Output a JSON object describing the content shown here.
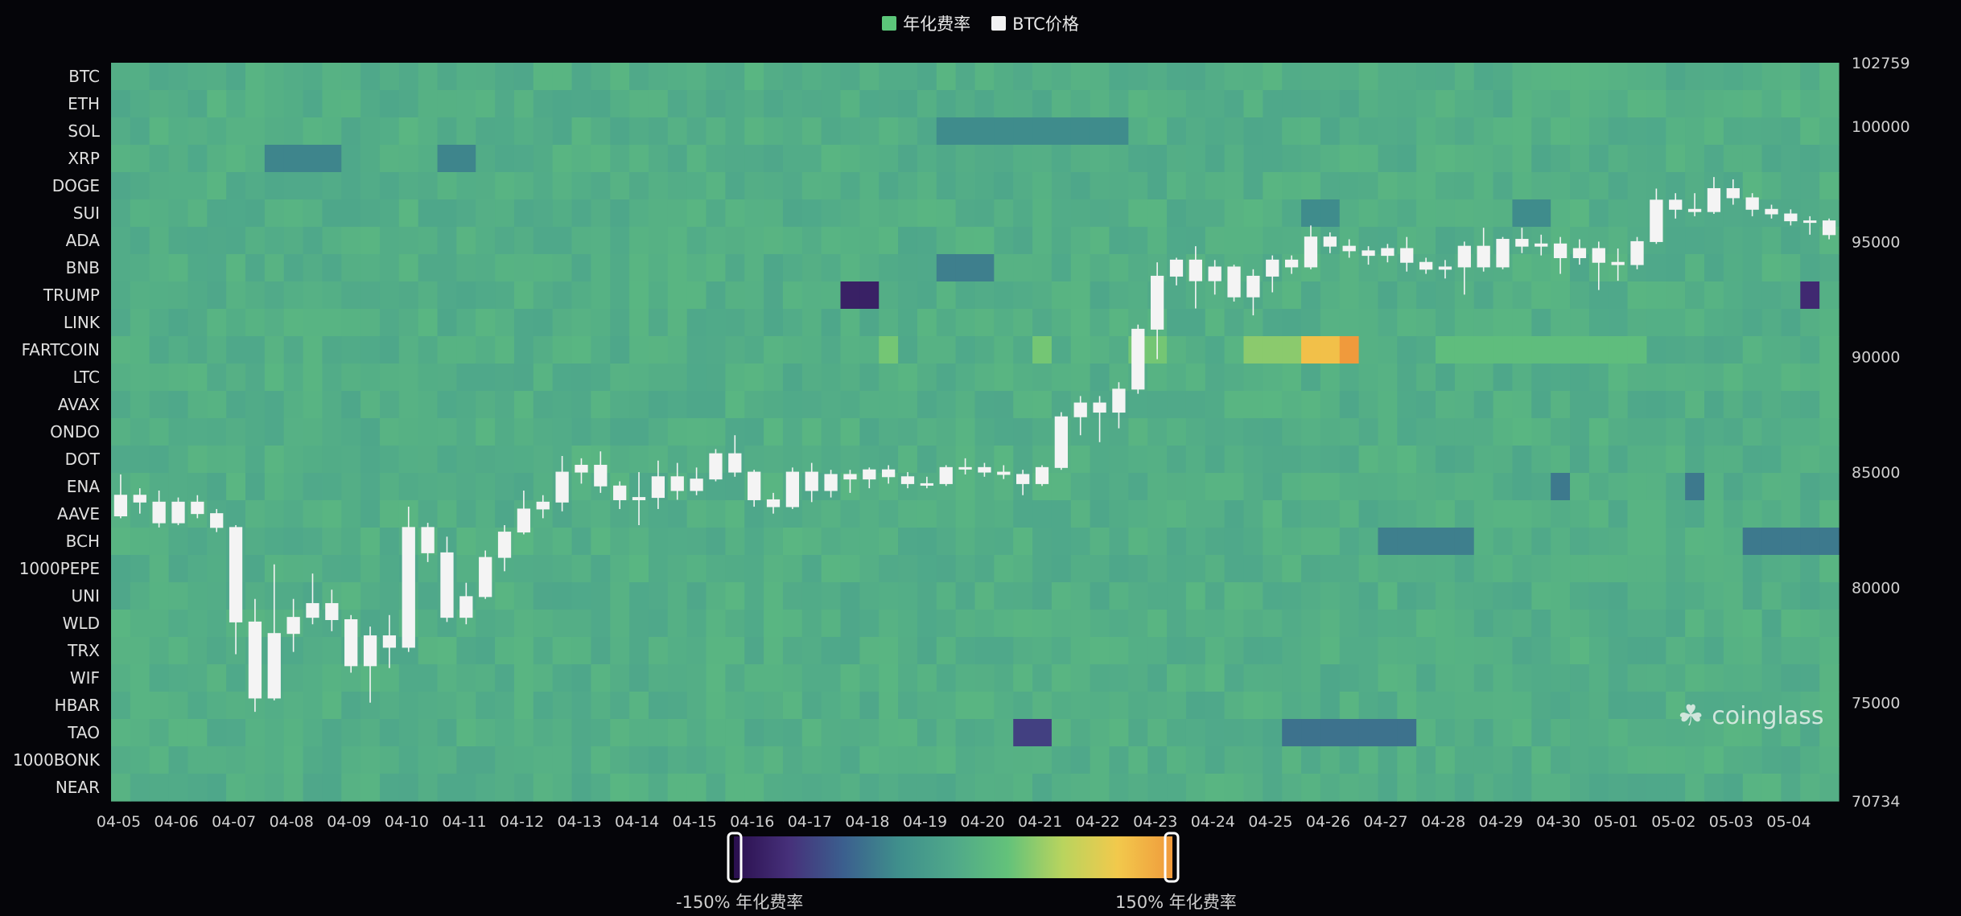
{
  "legend": {
    "funding_label": "年化费率",
    "funding_color": "#5cc67a",
    "price_label": "BTC价格",
    "price_color": "#f2f2f2"
  },
  "visual_map": {
    "min_label": "-150% 年化费率",
    "max_label": "150% 年化费率",
    "min": -150,
    "max": 150,
    "colors": [
      "#2a0f4e",
      "#46307a",
      "#3b5f8e",
      "#3f8f8c",
      "#4fa88a",
      "#63c27a",
      "#b9d45e",
      "#f2c94c",
      "#f09a3c"
    ]
  },
  "watermark": {
    "text": "coinglass",
    "icon": "coinglass-logo-icon"
  },
  "chart_data": {
    "type": "heatmap",
    "x_tick_labels": [
      "04-05",
      "04-06",
      "04-07",
      "04-08",
      "04-09",
      "04-10",
      "04-11",
      "04-12",
      "04-13",
      "04-14",
      "04-15",
      "04-16",
      "04-17",
      "04-18",
      "04-19",
      "04-20",
      "04-21",
      "04-22",
      "04-23",
      "04-24",
      "04-25",
      "04-26",
      "04-27",
      "04-28",
      "04-29",
      "04-30",
      "05-01",
      "05-02",
      "05-03",
      "05-04"
    ],
    "coins": [
      "BTC",
      "ETH",
      "SOL",
      "XRP",
      "DOGE",
      "SUI",
      "ADA",
      "BNB",
      "TRUMP",
      "LINK",
      "FARTCOIN",
      "LTC",
      "AVAX",
      "ONDO",
      "DOT",
      "ENA",
      "AAVE",
      "BCH",
      "1000PEPE",
      "UNI",
      "WLD",
      "TRX",
      "WIF",
      "HBAR",
      "TAO",
      "1000BONK",
      "NEAR"
    ],
    "price_axis": {
      "ticks": [
        102759,
        100000,
        95000,
        90000,
        85000,
        80000,
        75000,
        70734
      ],
      "min": 70734,
      "max": 102759
    },
    "periods_per_day": 3,
    "funding_default": 10,
    "funding_highlights": [
      {
        "coin": "FARTCOIN",
        "x": [
          59,
          60,
          61,
          62,
          63,
          64
        ],
        "value": 55
      },
      {
        "coin": "FARTCOIN",
        "x": [
          64
        ],
        "value": 150
      },
      {
        "coin": "FARTCOIN",
        "x": [
          62,
          63
        ],
        "value": 120
      },
      {
        "coin": "FARTCOIN",
        "x": [
          54,
          53,
          40,
          48
        ],
        "value": 45
      },
      {
        "coin": "FARTCOIN",
        "x": [
          69,
          70,
          71,
          72,
          73,
          74,
          75,
          76,
          77,
          78,
          79
        ],
        "value": 30
      },
      {
        "coin": "TRUMP",
        "x": [
          38,
          39
        ],
        "value": -130
      },
      {
        "coin": "TRUMP",
        "x": [
          88
        ],
        "value": -120
      },
      {
        "coin": "TAO",
        "x": [
          47,
          48
        ],
        "value": -100
      },
      {
        "coin": "TAO",
        "x": [
          61,
          62,
          63,
          64,
          65,
          66,
          67
        ],
        "value": -60
      },
      {
        "coin": "BCH",
        "x": [
          66,
          67,
          68,
          69,
          70
        ],
        "value": -50
      },
      {
        "coin": "BCH",
        "x": [
          85,
          86,
          87,
          88,
          89,
          90
        ],
        "value": -55
      },
      {
        "coin": "SOL",
        "x": [
          43,
          44,
          45,
          46,
          47,
          48,
          49,
          50,
          51,
          52
        ],
        "value": -40
      },
      {
        "coin": "XRP",
        "x": [
          8,
          9,
          10,
          11,
          17,
          18
        ],
        "value": -45
      },
      {
        "coin": "SUI",
        "x": [
          62,
          63,
          73,
          74
        ],
        "value": -40
      },
      {
        "coin": "ENA",
        "x": [
          75,
          82
        ],
        "value": -55
      },
      {
        "coin": "BNB",
        "x": [
          43,
          44,
          45
        ],
        "value": -50
      }
    ],
    "candles": [
      {
        "t": 0,
        "o": 83100,
        "c": 84000,
        "h": 84900,
        "l": 83000
      },
      {
        "t": 1,
        "o": 84000,
        "c": 83700,
        "h": 84300,
        "l": 83200
      },
      {
        "t": 2,
        "o": 83700,
        "c": 82800,
        "h": 84200,
        "l": 82600
      },
      {
        "t": 3,
        "o": 82800,
        "c": 83700,
        "h": 83900,
        "l": 82700
      },
      {
        "t": 4,
        "o": 83700,
        "c": 83200,
        "h": 84000,
        "l": 83000
      },
      {
        "t": 5,
        "o": 83200,
        "c": 82600,
        "h": 83400,
        "l": 82400
      },
      {
        "t": 6,
        "o": 82600,
        "c": 78500,
        "h": 82700,
        "l": 77100
      },
      {
        "t": 7,
        "o": 78500,
        "c": 75200,
        "h": 79500,
        "l": 74600
      },
      {
        "t": 8,
        "o": 75200,
        "c": 78000,
        "h": 81000,
        "l": 75100
      },
      {
        "t": 9,
        "o": 78000,
        "c": 78700,
        "h": 79500,
        "l": 77200
      },
      {
        "t": 10,
        "o": 78700,
        "c": 79300,
        "h": 80600,
        "l": 78400
      },
      {
        "t": 11,
        "o": 79300,
        "c": 78600,
        "h": 79900,
        "l": 78100
      },
      {
        "t": 12,
        "o": 78600,
        "c": 76600,
        "h": 78800,
        "l": 76300
      },
      {
        "t": 13,
        "o": 76600,
        "c": 77900,
        "h": 78300,
        "l": 75000
      },
      {
        "t": 14,
        "o": 77900,
        "c": 77400,
        "h": 78800,
        "l": 76500
      },
      {
        "t": 15,
        "o": 77400,
        "c": 82600,
        "h": 83500,
        "l": 77200
      },
      {
        "t": 16,
        "o": 82600,
        "c": 81500,
        "h": 82800,
        "l": 81100
      },
      {
        "t": 17,
        "o": 81500,
        "c": 78700,
        "h": 82200,
        "l": 78500
      },
      {
        "t": 18,
        "o": 78700,
        "c": 79600,
        "h": 80200,
        "l": 78400
      },
      {
        "t": 19,
        "o": 79600,
        "c": 81300,
        "h": 81600,
        "l": 79500
      },
      {
        "t": 20,
        "o": 81300,
        "c": 82400,
        "h": 82700,
        "l": 80700
      },
      {
        "t": 21,
        "o": 82400,
        "c": 83400,
        "h": 84200,
        "l": 82300
      },
      {
        "t": 22,
        "o": 83400,
        "c": 83700,
        "h": 84000,
        "l": 83000
      },
      {
        "t": 23,
        "o": 83700,
        "c": 85000,
        "h": 85700,
        "l": 83300
      },
      {
        "t": 24,
        "o": 85000,
        "c": 85300,
        "h": 85600,
        "l": 84500
      },
      {
        "t": 25,
        "o": 85300,
        "c": 84400,
        "h": 85900,
        "l": 84100
      },
      {
        "t": 26,
        "o": 84400,
        "c": 83800,
        "h": 84600,
        "l": 83400
      },
      {
        "t": 27,
        "o": 83800,
        "c": 83900,
        "h": 85000,
        "l": 82700
      },
      {
        "t": 28,
        "o": 83900,
        "c": 84800,
        "h": 85500,
        "l": 83400
      },
      {
        "t": 29,
        "o": 84800,
        "c": 84200,
        "h": 85400,
        "l": 83800
      },
      {
        "t": 30,
        "o": 84200,
        "c": 84700,
        "h": 85200,
        "l": 84000
      },
      {
        "t": 31,
        "o": 84700,
        "c": 85800,
        "h": 86000,
        "l": 84600
      },
      {
        "t": 32,
        "o": 85800,
        "c": 85000,
        "h": 86600,
        "l": 84800
      },
      {
        "t": 33,
        "o": 85000,
        "c": 83800,
        "h": 85100,
        "l": 83500
      },
      {
        "t": 34,
        "o": 83800,
        "c": 83500,
        "h": 84100,
        "l": 83200
      },
      {
        "t": 35,
        "o": 83500,
        "c": 85000,
        "h": 85200,
        "l": 83400
      },
      {
        "t": 36,
        "o": 85000,
        "c": 84200,
        "h": 85400,
        "l": 83700
      },
      {
        "t": 37,
        "o": 84200,
        "c": 84900,
        "h": 85100,
        "l": 83900
      },
      {
        "t": 38,
        "o": 84900,
        "c": 84700,
        "h": 85100,
        "l": 84100
      },
      {
        "t": 39,
        "o": 84700,
        "c": 85100,
        "h": 85200,
        "l": 84300
      },
      {
        "t": 40,
        "o": 85100,
        "c": 84800,
        "h": 85300,
        "l": 84500
      },
      {
        "t": 41,
        "o": 84800,
        "c": 84500,
        "h": 85000,
        "l": 84300
      },
      {
        "t": 42,
        "o": 84500,
        "c": 84500,
        "h": 84800,
        "l": 84300
      },
      {
        "t": 43,
        "o": 84500,
        "c": 85200,
        "h": 85300,
        "l": 84400
      },
      {
        "t": 44,
        "o": 85200,
        "c": 85200,
        "h": 85600,
        "l": 84900
      },
      {
        "t": 45,
        "o": 85200,
        "c": 85000,
        "h": 85400,
        "l": 84800
      },
      {
        "t": 46,
        "o": 85000,
        "c": 84900,
        "h": 85300,
        "l": 84700
      },
      {
        "t": 47,
        "o": 84900,
        "c": 84500,
        "h": 85100,
        "l": 84000
      },
      {
        "t": 48,
        "o": 84500,
        "c": 85200,
        "h": 85300,
        "l": 84400
      },
      {
        "t": 49,
        "o": 85200,
        "c": 87400,
        "h": 87600,
        "l": 85100
      },
      {
        "t": 50,
        "o": 87400,
        "c": 88000,
        "h": 88300,
        "l": 86600
      },
      {
        "t": 51,
        "o": 88000,
        "c": 87600,
        "h": 88300,
        "l": 86300
      },
      {
        "t": 52,
        "o": 87600,
        "c": 88600,
        "h": 88900,
        "l": 86900
      },
      {
        "t": 53,
        "o": 88600,
        "c": 91200,
        "h": 91400,
        "l": 88400
      },
      {
        "t": 54,
        "o": 91200,
        "c": 93500,
        "h": 94100,
        "l": 89900
      },
      {
        "t": 55,
        "o": 93500,
        "c": 94200,
        "h": 94300,
        "l": 93100
      },
      {
        "t": 56,
        "o": 94200,
        "c": 93300,
        "h": 94800,
        "l": 92100
      },
      {
        "t": 57,
        "o": 93300,
        "c": 93900,
        "h": 94200,
        "l": 92700
      },
      {
        "t": 58,
        "o": 93900,
        "c": 92600,
        "h": 94000,
        "l": 92400
      },
      {
        "t": 59,
        "o": 92600,
        "c": 93500,
        "h": 93800,
        "l": 91800
      },
      {
        "t": 60,
        "o": 93500,
        "c": 94200,
        "h": 94400,
        "l": 92800
      },
      {
        "t": 61,
        "o": 94200,
        "c": 93900,
        "h": 94400,
        "l": 93600
      },
      {
        "t": 62,
        "o": 93900,
        "c": 95200,
        "h": 95700,
        "l": 93800
      },
      {
        "t": 63,
        "o": 95200,
        "c": 94800,
        "h": 95400,
        "l": 94500
      },
      {
        "t": 64,
        "o": 94800,
        "c": 94600,
        "h": 95100,
        "l": 94300
      },
      {
        "t": 65,
        "o": 94600,
        "c": 94400,
        "h": 94800,
        "l": 94000
      },
      {
        "t": 66,
        "o": 94400,
        "c": 94700,
        "h": 94900,
        "l": 94100
      },
      {
        "t": 67,
        "o": 94700,
        "c": 94100,
        "h": 95200,
        "l": 93700
      },
      {
        "t": 68,
        "o": 94100,
        "c": 93800,
        "h": 94300,
        "l": 93600
      },
      {
        "t": 69,
        "o": 93800,
        "c": 93900,
        "h": 94200,
        "l": 93400
      },
      {
        "t": 70,
        "o": 93900,
        "c": 94800,
        "h": 95000,
        "l": 92700
      },
      {
        "t": 71,
        "o": 94800,
        "c": 93900,
        "h": 95600,
        "l": 93700
      },
      {
        "t": 72,
        "o": 93900,
        "c": 95100,
        "h": 95200,
        "l": 93800
      },
      {
        "t": 73,
        "o": 95100,
        "c": 94800,
        "h": 95600,
        "l": 94500
      },
      {
        "t": 74,
        "o": 94800,
        "c": 94900,
        "h": 95300,
        "l": 94400
      },
      {
        "t": 75,
        "o": 94900,
        "c": 94300,
        "h": 95200,
        "l": 93600
      },
      {
        "t": 76,
        "o": 94300,
        "c": 94700,
        "h": 95100,
        "l": 94000
      },
      {
        "t": 77,
        "o": 94700,
        "c": 94100,
        "h": 95000,
        "l": 92900
      },
      {
        "t": 78,
        "o": 94100,
        "c": 94000,
        "h": 94700,
        "l": 93300
      },
      {
        "t": 79,
        "o": 94000,
        "c": 95000,
        "h": 95200,
        "l": 93800
      },
      {
        "t": 80,
        "o": 95000,
        "c": 96800,
        "h": 97300,
        "l": 94900
      },
      {
        "t": 81,
        "o": 96800,
        "c": 96400,
        "h": 97100,
        "l": 96000
      },
      {
        "t": 82,
        "o": 96400,
        "c": 96300,
        "h": 97100,
        "l": 96100
      },
      {
        "t": 83,
        "o": 96300,
        "c": 97300,
        "h": 97800,
        "l": 96200
      },
      {
        "t": 84,
        "o": 97300,
        "c": 96900,
        "h": 97700,
        "l": 96600
      },
      {
        "t": 85,
        "o": 96900,
        "c": 96400,
        "h": 97100,
        "l": 96100
      },
      {
        "t": 86,
        "o": 96400,
        "c": 96200,
        "h": 96600,
        "l": 96000
      },
      {
        "t": 87,
        "o": 96200,
        "c": 95900,
        "h": 96400,
        "l": 95700
      },
      {
        "t": 88,
        "o": 95900,
        "c": 95900,
        "h": 96100,
        "l": 95300
      },
      {
        "t": 89,
        "o": 95900,
        "c": 95300,
        "h": 96000,
        "l": 95100
      }
    ]
  }
}
